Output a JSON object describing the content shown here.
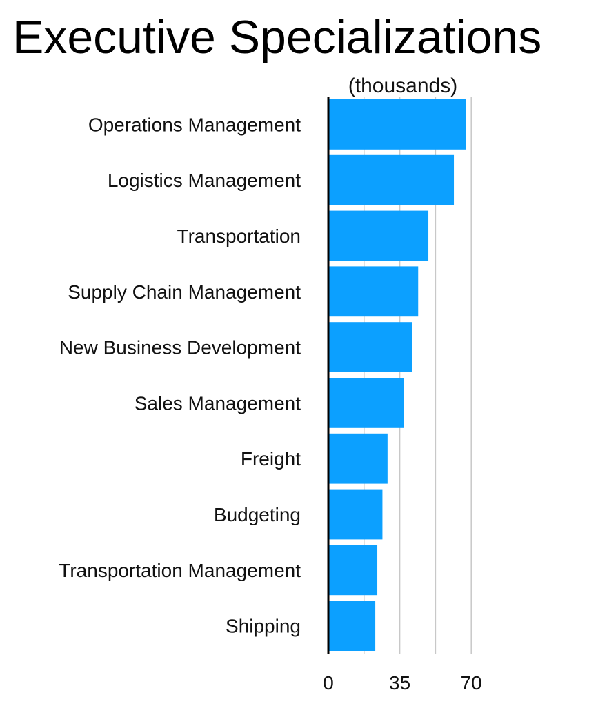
{
  "chart_data": {
    "type": "bar",
    "orientation": "horizontal",
    "title": "Executive Specializations",
    "unit_label": "(thousands)",
    "categories": [
      "Operations Management",
      "Logistics Management",
      "Transportation",
      "Supply Chain Management",
      "New Business Development",
      "Sales Management",
      "Freight",
      "Budgeting",
      "Transportation Management",
      "Shipping"
    ],
    "values": [
      67.5,
      61.5,
      49,
      44,
      41,
      37,
      29,
      26.5,
      24,
      23
    ],
    "xlim": [
      0,
      70
    ],
    "xticks": [
      {
        "value": 0,
        "label": "0"
      },
      {
        "value": 35,
        "label": "35"
      },
      {
        "value": 70,
        "label": "70"
      }
    ],
    "gridlines": [
      17.5,
      35,
      52.5,
      70
    ],
    "grid": true,
    "bar_color": "#0ca0ff",
    "gridline_color": "#c8c8c8",
    "axis_color": "#000000"
  }
}
